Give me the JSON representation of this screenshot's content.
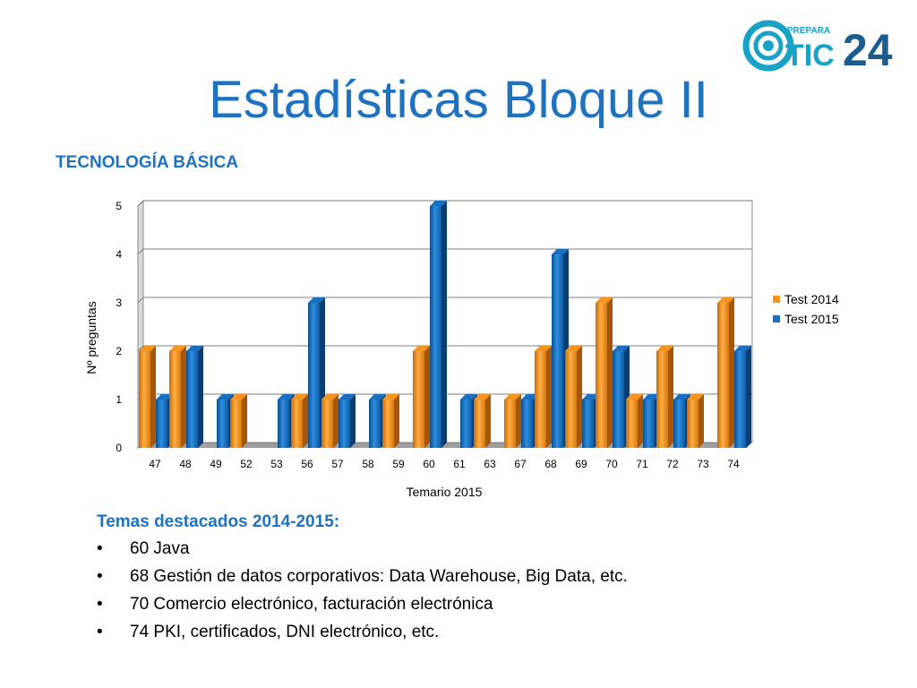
{
  "slide": {
    "title": "Estadísticas Bloque II",
    "subtitle": "TECNOLOGÍA BÁSICA"
  },
  "logo": {
    "small_text": "PREPARA",
    "brand_text": "TIC",
    "number_text": "24",
    "colors": {
      "teal": "#18a3c6",
      "dark": "#1c5d90"
    }
  },
  "chart_data": {
    "type": "bar",
    "categories": [
      "47",
      "48",
      "49",
      "52",
      "53",
      "56",
      "57",
      "58",
      "59",
      "60",
      "61",
      "63",
      "67",
      "68",
      "69",
      "70",
      "71",
      "72",
      "73",
      "74"
    ],
    "series": [
      {
        "name": "Test 2014",
        "color": "#f7941d",
        "values": [
          2,
          2,
          0,
          1,
          0,
          1,
          1,
          0,
          1,
          2,
          0,
          1,
          1,
          2,
          2,
          3,
          1,
          2,
          1,
          3
        ]
      },
      {
        "name": "Test 2015",
        "color": "#1a6fc0",
        "values": [
          1,
          2,
          1,
          0,
          1,
          3,
          1,
          1,
          0,
          5,
          1,
          0,
          1,
          4,
          1,
          2,
          1,
          1,
          0,
          2
        ]
      }
    ],
    "xlabel": "Temario 2015",
    "ylabel": "Nº preguntas",
    "ylim": [
      0,
      5
    ],
    "yticks": [
      0,
      1,
      2,
      3,
      4,
      5
    ],
    "grid": true,
    "legend": "right"
  },
  "notes": {
    "heading": "Temas destacados 2014-2015:",
    "bullet": "•",
    "items": [
      "60 Java",
      "68 Gestión de datos corporativos: Data Warehouse, Big Data, etc.",
      "70 Comercio electrónico, facturación electrónica",
      "74 PKI, certificados, DNI electrónico, etc."
    ]
  }
}
